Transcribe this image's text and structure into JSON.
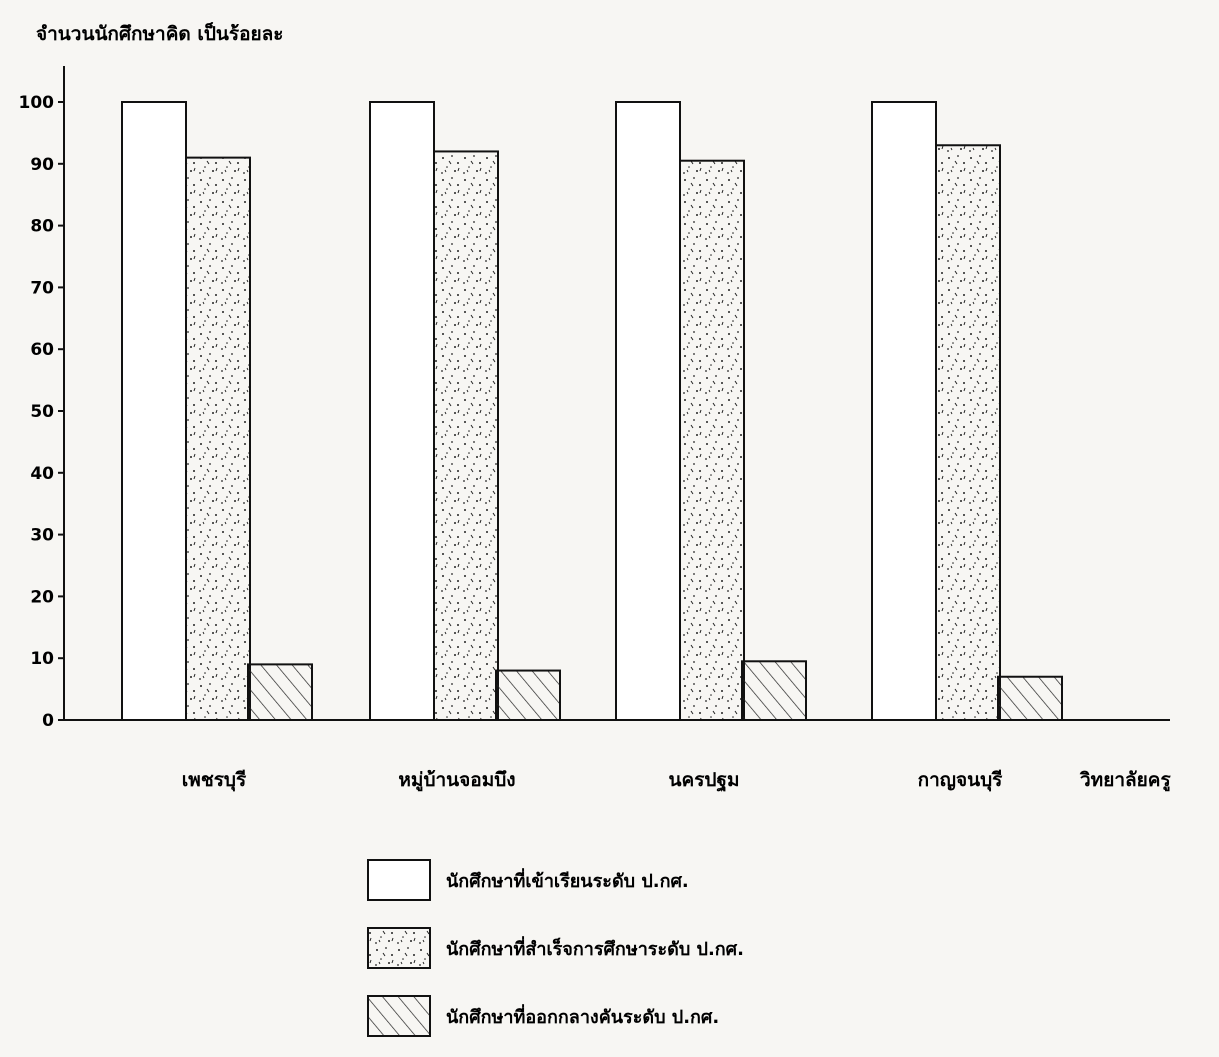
{
  "chart_data": {
    "type": "bar",
    "ylabel": "จำนวนนักศึกษาคิด เป็นร้อยละ",
    "xlabel": "วิทยาลัยครู",
    "ylim": [
      0,
      100
    ],
    "yticks": [
      0,
      10,
      20,
      30,
      40,
      50,
      60,
      70,
      80,
      90,
      100
    ],
    "categories": [
      "เพชรบุรี",
      "หมู่บ้านจอมบึง",
      "นครปฐม",
      "กาญจนบุรี"
    ],
    "series": [
      {
        "name": "นักศึกษาที่เข้าเรียนระดับ ป.กศ.",
        "pattern": "empty",
        "values": [
          100,
          100,
          100,
          100
        ]
      },
      {
        "name": "นักศึกษาที่สำเร็จการศึกษาระดับ ป.กศ.",
        "pattern": "dots",
        "values": [
          91,
          92,
          90.5,
          93
        ]
      },
      {
        "name": "นักศึกษาที่ออกกลางคันระดับ ป.กศ.",
        "pattern": "hatch",
        "values": [
          9,
          8,
          9.5,
          7
        ]
      }
    ],
    "legend_position": "bottom-center",
    "grid": false
  }
}
